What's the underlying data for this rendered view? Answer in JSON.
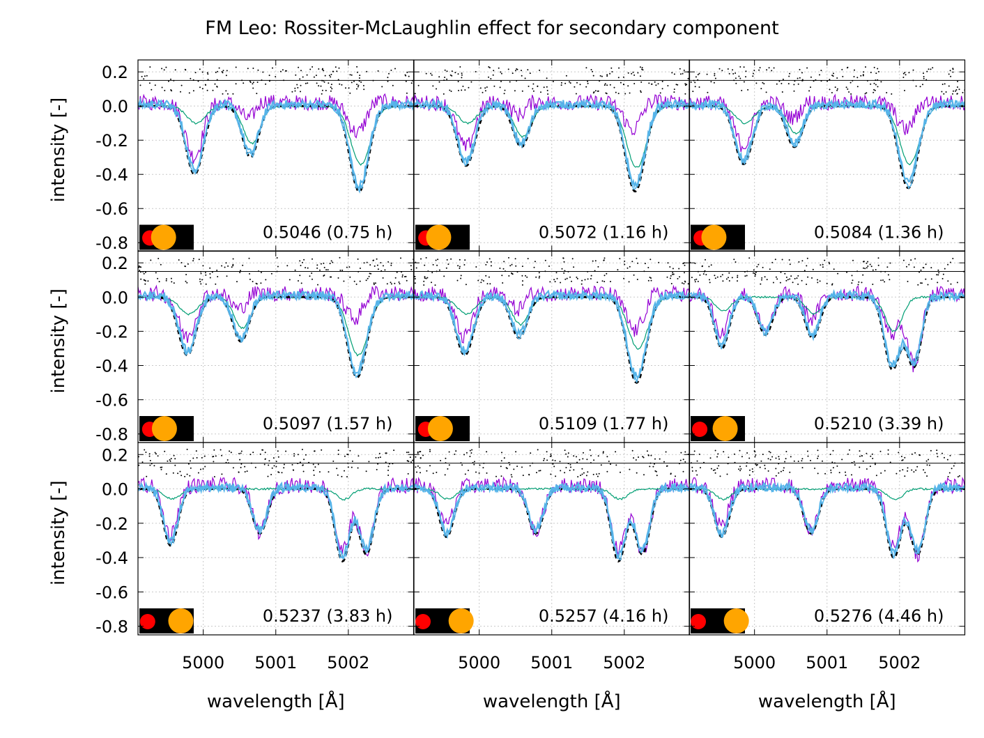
{
  "chart_data": {
    "type": "line",
    "title": "FM Leo: Rossiter-McLaughlin effect for secondary component",
    "xlabel": "wavelength [Å]",
    "ylabel": "intensity [-]",
    "xlim": [
      4999.1,
      5002.9
    ],
    "ylim": [
      -0.85,
      0.27
    ],
    "xticks": [
      5000,
      5001,
      5002
    ],
    "xtick_labels": [
      "5000",
      "5001",
      "5002"
    ],
    "yticks": [
      0.2,
      0.0,
      -0.2,
      -0.4,
      -0.6,
      -0.8
    ],
    "ytick_labels": [
      "0.2",
      "0.0",
      "-0.2",
      "-0.4",
      "-0.6",
      "-0.8"
    ],
    "grid": true,
    "layout": "3x3 grid of panels, shared axes",
    "colors": {
      "observed": "#000000",
      "model": "#56b4e9",
      "secondary": "#9400d3",
      "primary": "#009e73",
      "residual_dots": "#000000",
      "reference_line": "#000000",
      "inset_background": "#000000",
      "inset_primary_disk": "#ffa500",
      "inset_secondary_disk": "#ff0000"
    },
    "series": [
      {
        "style": "dashed",
        "color": "#000000"
      },
      {
        "style": "solid",
        "color": "#56b4e9"
      },
      {
        "style": "solid",
        "color": "#9400d3"
      },
      {
        "style": "solid",
        "color": "#009e73"
      },
      {
        "style": "dots",
        "color": "#000000"
      }
    ],
    "reference_line_y": 0.15,
    "panels": [
      {
        "label": "0.5046 (0.75 h)",
        "secondary_separation": 0.14,
        "lines": [
          {
            "center": 4999.88,
            "depth": 0.4,
            "width": 0.12
          },
          {
            "center": 5000.65,
            "depth": 0.3,
            "width": 0.11
          },
          {
            "center": 5002.15,
            "depth": 0.5,
            "width": 0.13
          }
        ],
        "primary_depths": [
          0.1,
          0.22,
          0.34
        ],
        "secondary_shift": 0.0
      },
      {
        "label": "0.5072 (1.16 h)",
        "secondary_separation": 0.12,
        "lines": [
          {
            "center": 4999.82,
            "depth": 0.35,
            "width": 0.12
          },
          {
            "center": 5000.58,
            "depth": 0.24,
            "width": 0.11
          },
          {
            "center": 5002.15,
            "depth": 0.5,
            "width": 0.13
          }
        ],
        "primary_depths": [
          0.1,
          0.18,
          0.36
        ],
        "secondary_shift": 0.0
      },
      {
        "label": "0.5084 (1.36 h)",
        "secondary_separation": 0.12,
        "lines": [
          {
            "center": 4999.85,
            "depth": 0.34,
            "width": 0.12
          },
          {
            "center": 5000.55,
            "depth": 0.24,
            "width": 0.11
          },
          {
            "center": 5002.12,
            "depth": 0.48,
            "width": 0.13
          }
        ],
        "primary_depths": [
          0.1,
          0.16,
          0.34
        ],
        "secondary_shift": 0.0
      },
      {
        "label": "0.5097 (1.57 h)",
        "secondary_separation": 0.16,
        "lines": [
          {
            "center": 4999.78,
            "depth": 0.34,
            "width": 0.12
          },
          {
            "center": 5000.52,
            "depth": 0.26,
            "width": 0.11
          },
          {
            "center": 5002.12,
            "depth": 0.47,
            "width": 0.13
          }
        ],
        "primary_depths": [
          0.1,
          0.18,
          0.34
        ],
        "secondary_shift": 0.0
      },
      {
        "label": "0.5109 (1.77 h)",
        "secondary_separation": 0.16,
        "lines": [
          {
            "center": 4999.8,
            "depth": 0.34,
            "width": 0.12
          },
          {
            "center": 5000.55,
            "depth": 0.24,
            "width": 0.11
          },
          {
            "center": 5002.17,
            "depth": 0.5,
            "width": 0.13
          }
        ],
        "primary_depths": [
          0.1,
          0.16,
          0.3
        ],
        "secondary_shift": 0.0
      },
      {
        "label": "0.5210 (3.39 h)",
        "secondary_separation": 0.38,
        "lines": [
          {
            "center": 4999.55,
            "depth": 0.3,
            "width": 0.1
          },
          {
            "center": 5000.15,
            "depth": 0.22,
            "width": 0.1
          },
          {
            "center": 5000.8,
            "depth": 0.24,
            "width": 0.1
          },
          {
            "center": 5001.9,
            "depth": 0.42,
            "width": 0.11
          },
          {
            "center": 5002.2,
            "depth": 0.4,
            "width": 0.1
          }
        ],
        "primary_depths": [
          0.08,
          0.0,
          0.1,
          0.2,
          0.0
        ],
        "secondary_shift": 0.0
      },
      {
        "label": "0.5237 (3.83 h)",
        "secondary_separation": 0.54,
        "lines": [
          {
            "center": 4999.55,
            "depth": 0.33,
            "width": 0.1
          },
          {
            "center": 5000.78,
            "depth": 0.26,
            "width": 0.1
          },
          {
            "center": 5001.92,
            "depth": 0.42,
            "width": 0.1
          },
          {
            "center": 5002.25,
            "depth": 0.38,
            "width": 0.1
          }
        ],
        "primary_depths": [
          0.06,
          0.0,
          0.06,
          0.0
        ],
        "secondary_shift": 0.0
      },
      {
        "label": "0.5257 (4.16 h)",
        "secondary_separation": 0.64,
        "lines": [
          {
            "center": 4999.55,
            "depth": 0.28,
            "width": 0.1
          },
          {
            "center": 5000.78,
            "depth": 0.26,
            "width": 0.1
          },
          {
            "center": 5001.92,
            "depth": 0.42,
            "width": 0.1
          },
          {
            "center": 5002.25,
            "depth": 0.38,
            "width": 0.1
          }
        ],
        "primary_depths": [
          0.06,
          0.0,
          0.06,
          0.0
        ],
        "secondary_shift": 0.0
      },
      {
        "label": "0.5276 (4.46 h)",
        "secondary_separation": 0.64,
        "lines": [
          {
            "center": 4999.55,
            "depth": 0.28,
            "width": 0.1
          },
          {
            "center": 5000.78,
            "depth": 0.26,
            "width": 0.1
          },
          {
            "center": 5001.92,
            "depth": 0.4,
            "width": 0.1
          },
          {
            "center": 5002.25,
            "depth": 0.38,
            "width": 0.1
          }
        ],
        "primary_depths": [
          0.06,
          0.0,
          0.06,
          0.0
        ],
        "secondary_shift": 0.0
      }
    ]
  }
}
